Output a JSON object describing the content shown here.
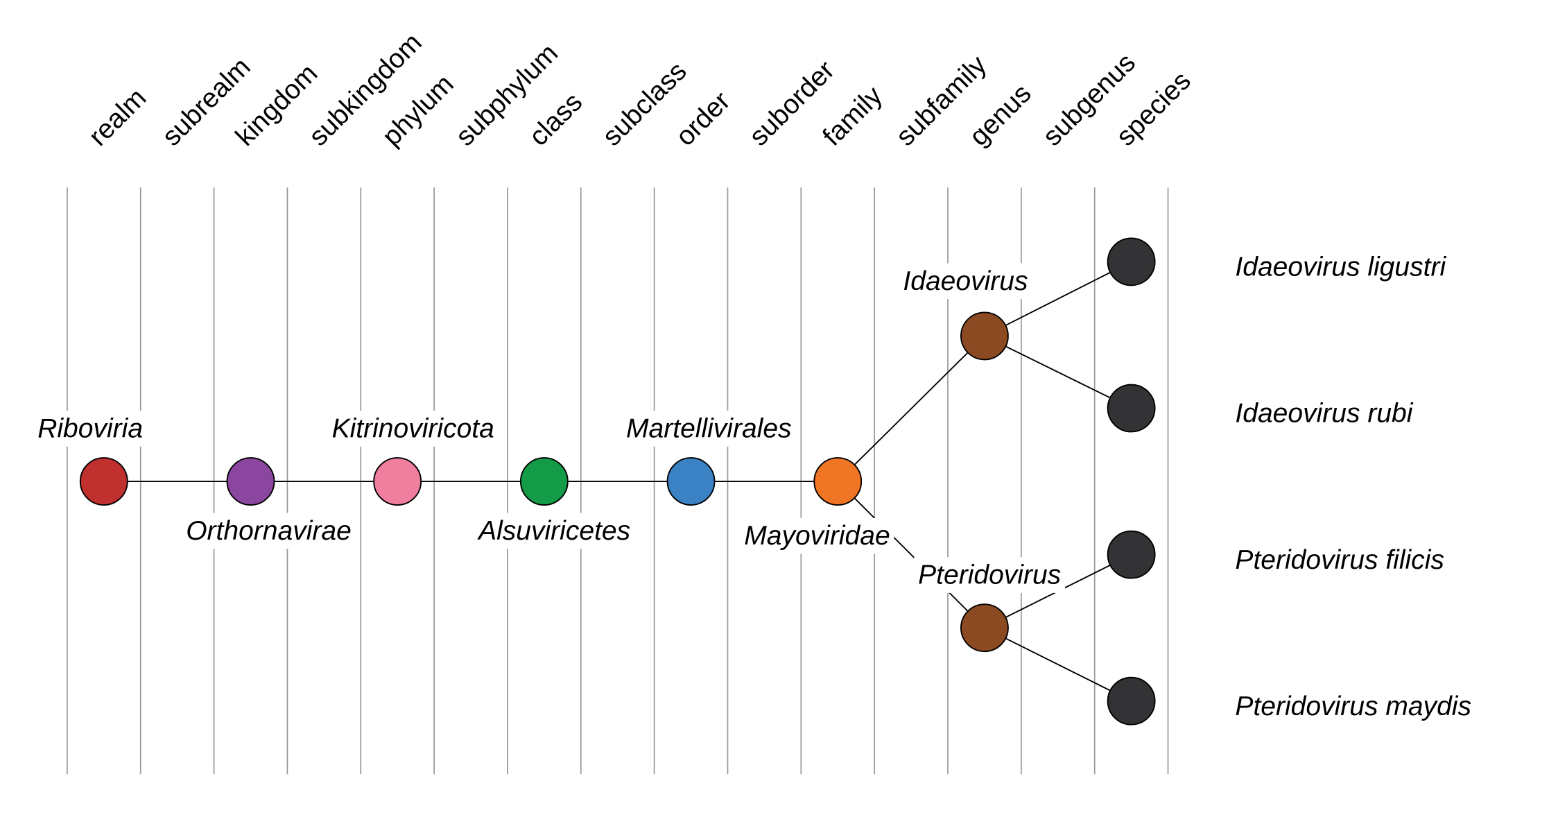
{
  "ranks": [
    "realm",
    "subrealm",
    "kingdom",
    "subkingdom",
    "phylum",
    "subphylum",
    "class",
    "subclass",
    "order",
    "suborder",
    "family",
    "subfamily",
    "genus",
    "subgenus",
    "species"
  ],
  "nodes": [
    {
      "label": "Riboviria",
      "color": "#c0302e"
    },
    {
      "label": "Orthornavirae",
      "color": "#8b46a0"
    },
    {
      "label": "Kitrinoviricota",
      "color": "#f07e9e"
    },
    {
      "label": "Alsuviricetes",
      "color": "#149b47"
    },
    {
      "label": "Martellivirales",
      "color": "#3a82c4"
    },
    {
      "label": "Mayoviridae",
      "color": "#f07524"
    },
    {
      "label": "Idaeovirus",
      "color": "#8b4a22"
    },
    {
      "label": "Pteridovirus",
      "color": "#8b4a22"
    },
    {
      "label": "Idaeovirus ligustri",
      "color": "#333335"
    },
    {
      "label": "Idaeovirus rubi",
      "color": "#333335"
    },
    {
      "label": "Pteridovirus filicis",
      "color": "#333335"
    },
    {
      "label": "Pteridovirus maydis",
      "color": "#333335"
    }
  ]
}
